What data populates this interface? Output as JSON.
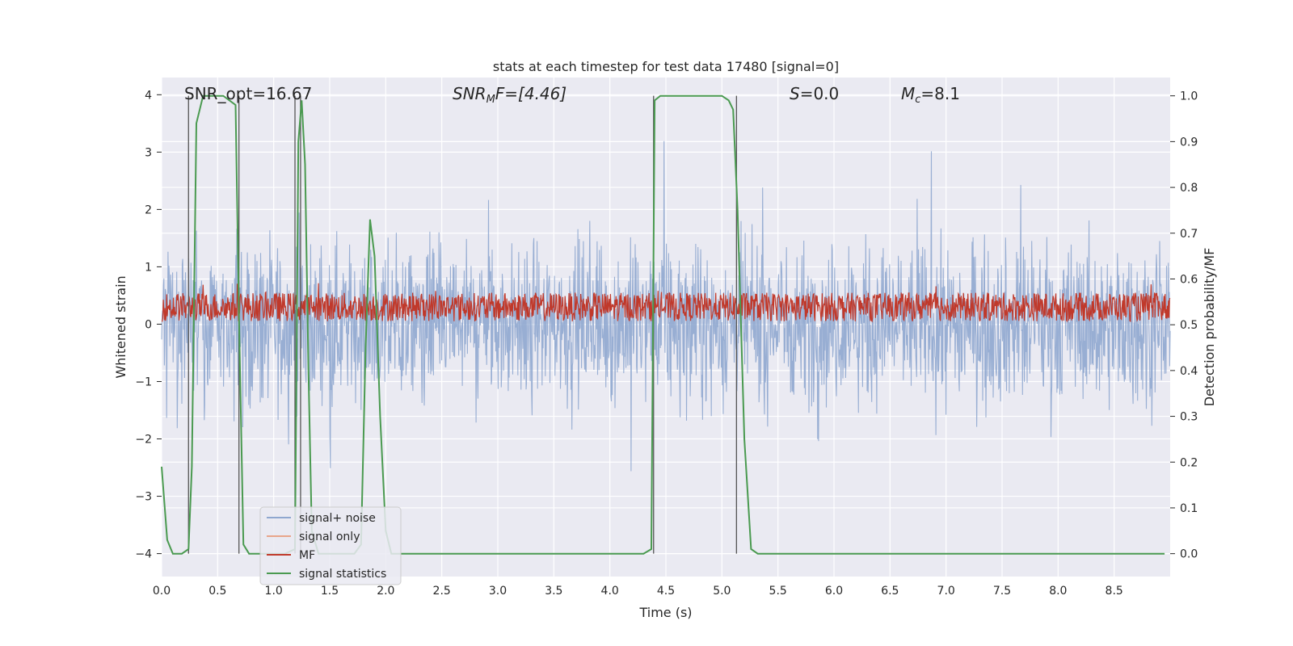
{
  "chart_data": {
    "type": "line",
    "title": "stats at each timestep for test data 17480 [signal=0]",
    "xlabel": "Time (s)",
    "ylabel": "Whitened strain",
    "y2label": "Detection probability/MF",
    "xlim": [
      0.0,
      9.0
    ],
    "ylim": [
      -4.4,
      4.3
    ],
    "y2lim": [
      -0.05,
      1.04
    ],
    "xticks": [
      "0.0",
      "0.5",
      "1.0",
      "1.5",
      "2.0",
      "2.5",
      "3.0",
      "3.5",
      "4.0",
      "4.5",
      "5.0",
      "5.5",
      "6.0",
      "6.5",
      "7.0",
      "7.5",
      "8.0",
      "8.5"
    ],
    "yticks": [
      "4",
      "3",
      "2",
      "1",
      "0",
      "−1",
      "−2",
      "−3",
      "−4"
    ],
    "y2ticks": [
      "1.0",
      "0.9",
      "0.8",
      "0.7",
      "0.6",
      "0.5",
      "0.4",
      "0.3",
      "0.2",
      "0.1",
      "0.0"
    ],
    "grid": true,
    "annotations": {
      "snr_opt": "SNR_opt=16.67",
      "snr_mf_sym": "SNR",
      "snr_mf_sub": "M",
      "snr_mf_rest": "F=[4.46]",
      "s_sym": "S",
      "s_rest": "=0.0",
      "mc_sym": "M",
      "mc_sub": "c",
      "mc_rest": "=8.1"
    },
    "series": [
      {
        "name": "signal+ noise",
        "color": "#8fa7cf",
        "axis": "left",
        "kind": "noise",
        "envelope_abs": 3.0
      },
      {
        "name": "signal only",
        "color": "#e8a58a",
        "axis": "left",
        "kind": "flat",
        "values": []
      },
      {
        "name": "MF",
        "color": "#c0392b",
        "axis": "left",
        "kind": "noise",
        "center": 0.3,
        "spread": 0.25
      },
      {
        "name": "signal statistics",
        "color": "#4a9a50",
        "axis": "right",
        "x": [
          0.0,
          0.05,
          0.1,
          0.18,
          0.24,
          0.27,
          0.31,
          0.37,
          0.45,
          0.55,
          0.66,
          0.69,
          0.73,
          0.78,
          0.82,
          0.9,
          1.0,
          1.1,
          1.19,
          1.22,
          1.25,
          1.28,
          1.31,
          1.34,
          1.4,
          1.5,
          1.6,
          1.72,
          1.78,
          1.82,
          1.86,
          1.9,
          1.95,
          2.0,
          2.05,
          2.1,
          2.5,
          3.0,
          3.5,
          4.0,
          4.3,
          4.37,
          4.4,
          4.45,
          4.6,
          5.0,
          5.06,
          5.1,
          5.14,
          5.2,
          5.26,
          5.32,
          5.5,
          6.0,
          7.0,
          8.0,
          8.95
        ],
        "values": [
          0.19,
          0.03,
          0.0,
          0.0,
          0.01,
          0.19,
          0.94,
          1.0,
          1.0,
          1.0,
          0.98,
          0.52,
          0.02,
          0.0,
          0.0,
          0.0,
          0.0,
          0.0,
          0.01,
          0.9,
          0.99,
          0.85,
          0.4,
          0.05,
          0.0,
          0.0,
          0.0,
          0.0,
          0.02,
          0.45,
          0.73,
          0.65,
          0.3,
          0.05,
          0.0,
          0.0,
          0.0,
          0.0,
          0.0,
          0.0,
          0.0,
          0.01,
          0.99,
          1.0,
          1.0,
          1.0,
          0.99,
          0.97,
          0.75,
          0.25,
          0.01,
          0.0,
          0.0,
          0.0,
          0.0,
          0.0,
          0.0
        ]
      }
    ],
    "vlines": [
      0.24,
      0.69,
      1.19,
      1.24,
      4.39,
      5.13
    ],
    "legend": {
      "position": "lower-left",
      "entries": [
        "signal+ noise",
        "signal only",
        "MF",
        "signal statistics"
      ]
    }
  }
}
